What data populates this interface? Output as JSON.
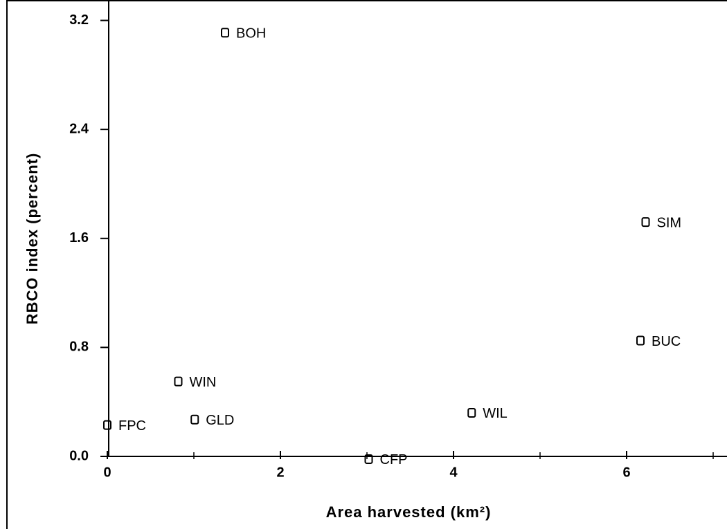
{
  "chart_data": {
    "type": "scatter",
    "x_label": "Area harvested (km²)",
    "y_label": "RBCO index (percent)",
    "labels": [
      "BOH",
      "SIM",
      "BUC",
      "WIN",
      "GLD",
      "FPC",
      "WIL",
      "CFP"
    ],
    "x": [
      1.36,
      6.22,
      6.16,
      0.82,
      1.01,
      0.0,
      4.21,
      3.02
    ],
    "values": [
      3.11,
      1.72,
      0.85,
      0.55,
      0.27,
      0.23,
      0.32,
      -0.02
    ],
    "color": "#000000",
    "xlim": [
      0,
      7.16
    ],
    "ylim": [
      0,
      3.35
    ],
    "xticks": [
      0,
      2,
      4,
      6
    ],
    "xminor_ticks": [
      1,
      3,
      5,
      7
    ],
    "yticks": [
      {
        "value": 0,
        "label": "0.0"
      },
      {
        "value": 0.8,
        "label": "0.8"
      },
      {
        "value": 1.6,
        "label": "1.6"
      },
      {
        "value": 2.4,
        "label": "2.4"
      },
      {
        "value": 3.2,
        "label": "3.2"
      }
    ]
  }
}
